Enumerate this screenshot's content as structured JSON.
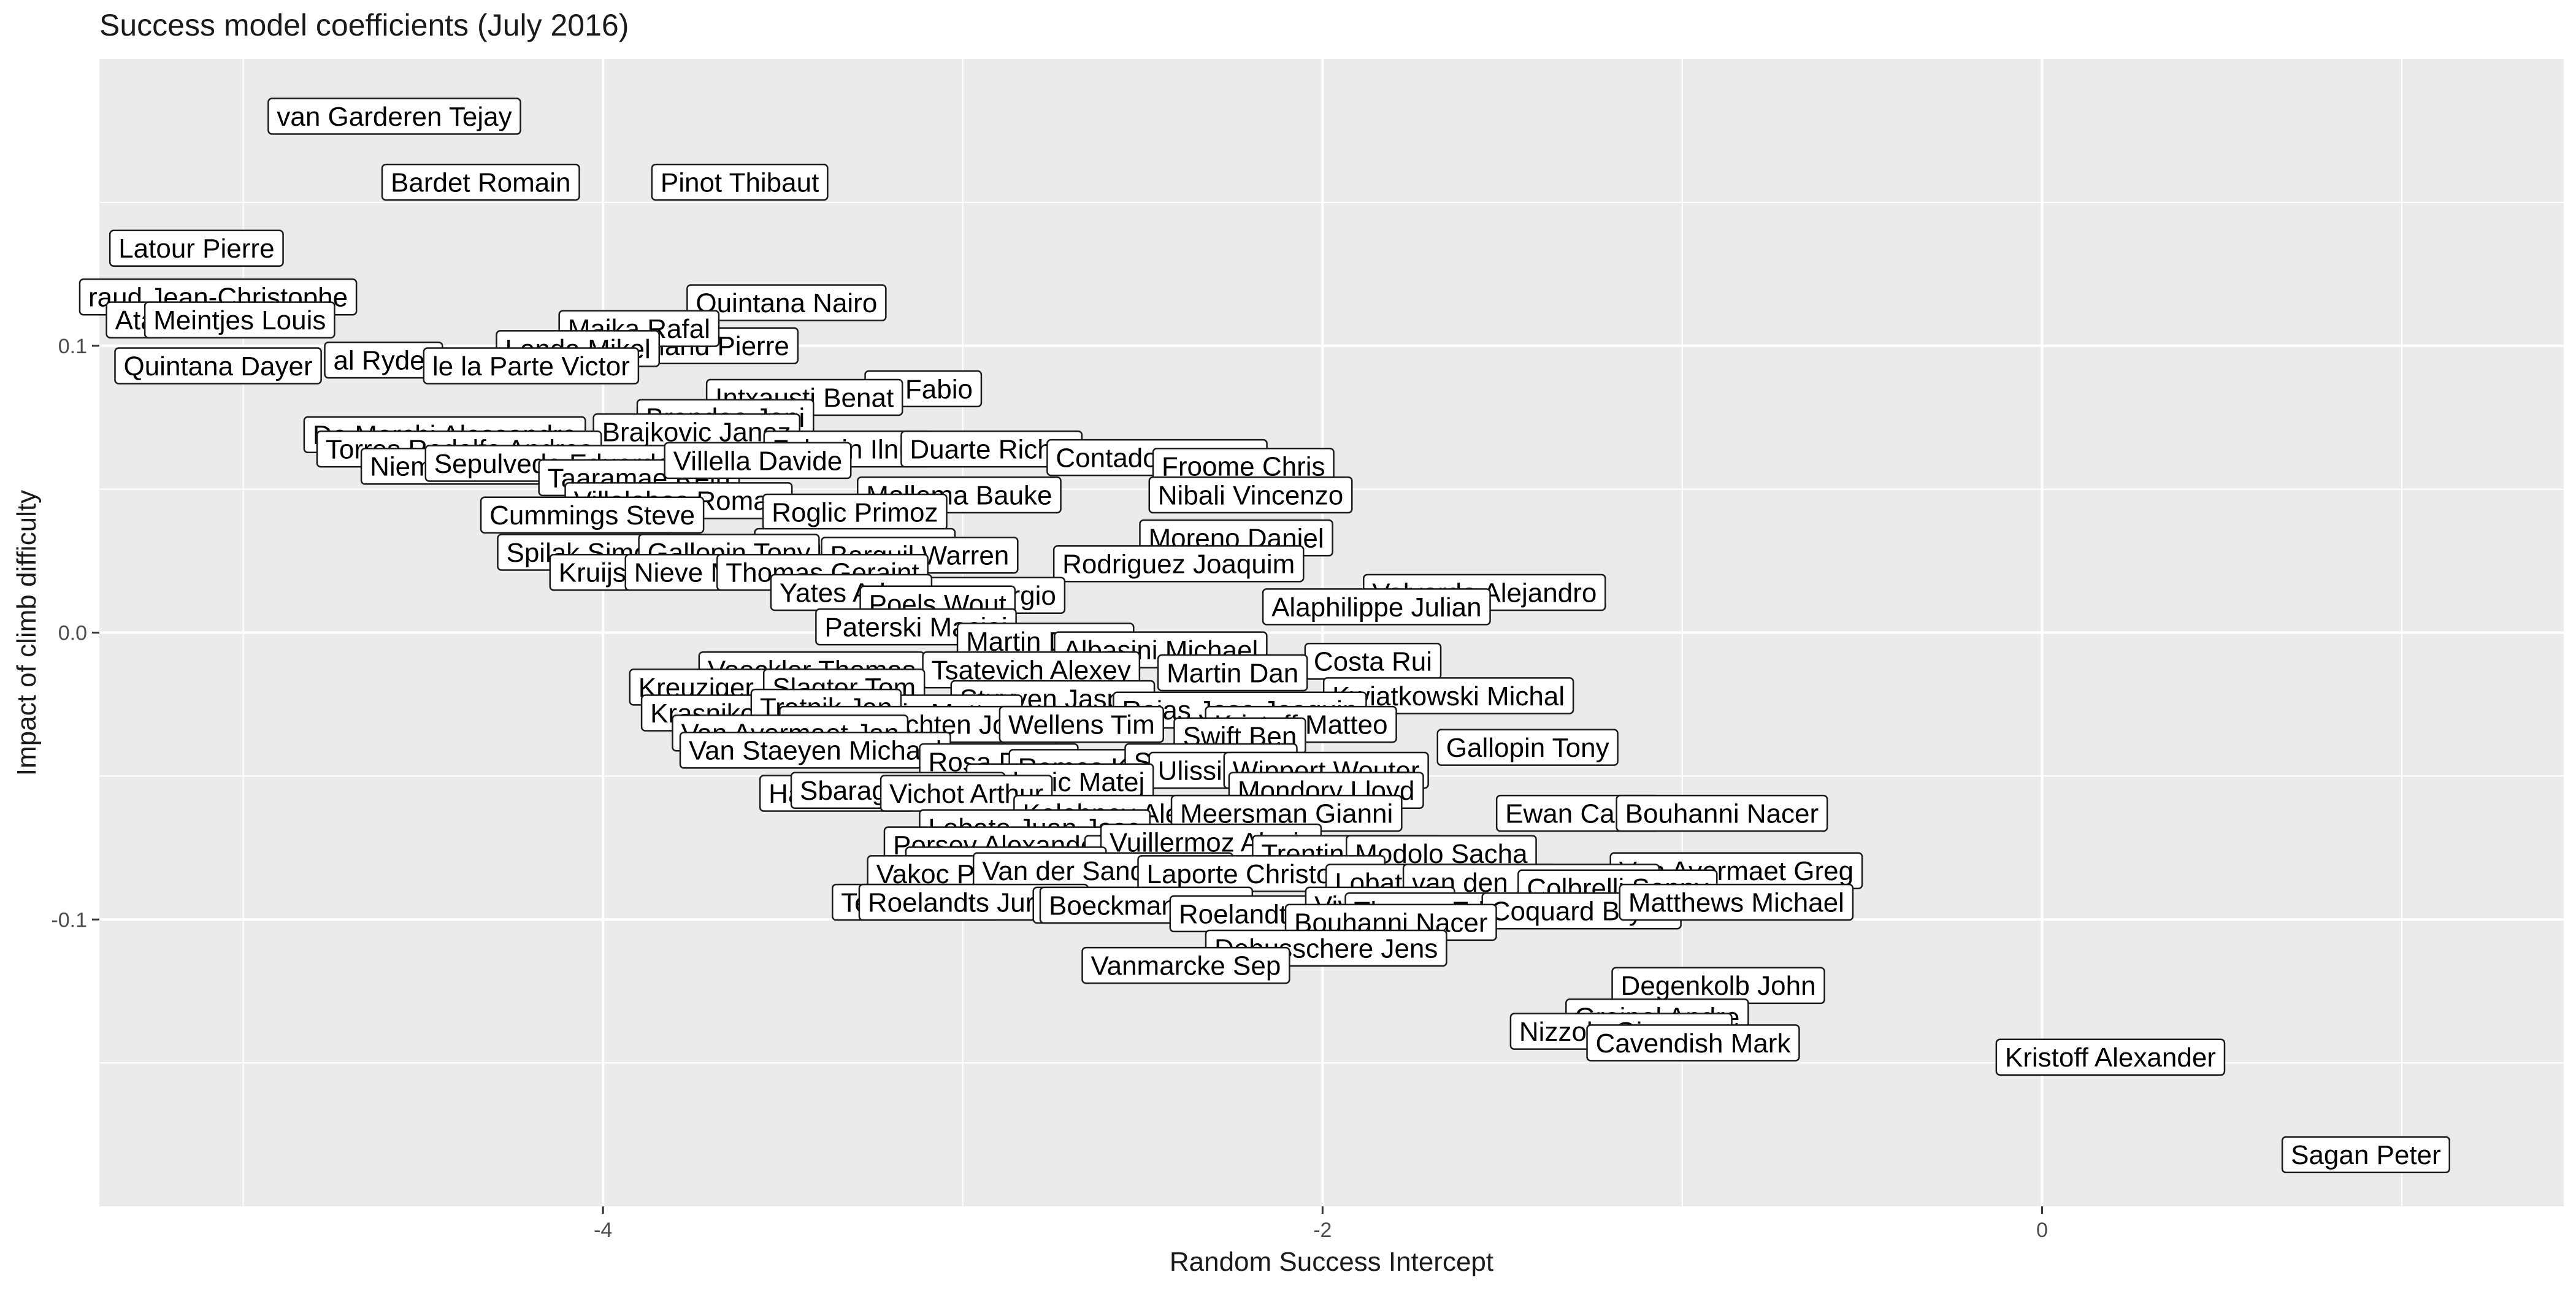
{
  "chart_data": {
    "type": "scatter",
    "title": "Success model coefficients (July 2016)",
    "xlabel": "Random Success Intercept",
    "ylabel": "Impact of climb difficulty",
    "xlim": [
      -5.4,
      1.45
    ],
    "ylim": [
      -0.2,
      0.2
    ],
    "x_ticks": [
      {
        "value": -4,
        "label": "-4"
      },
      {
        "value": -2,
        "label": "-2"
      },
      {
        "value": 0,
        "label": "0"
      }
    ],
    "y_ticks": [
      {
        "value": 0.1,
        "label": "0.1"
      },
      {
        "value": 0.0,
        "label": "0.0"
      },
      {
        "value": -0.1,
        "label": "-0.1"
      }
    ],
    "grid": true,
    "panel_background": "#ebebeb",
    "point_labels": [
      {
        "label": "van Garderen Tejay",
        "x": -4.58,
        "y": 0.18
      },
      {
        "label": "Bardet Romain",
        "x": -4.34,
        "y": 0.157
      },
      {
        "label": "Pinot Thibaut",
        "x": -3.62,
        "y": 0.157
      },
      {
        "label": "Latour Pierre",
        "x": -5.13,
        "y": 0.134
      },
      {
        "label": "Quintana Nairo",
        "x": -3.49,
        "y": 0.115
      },
      {
        "label": "Rolland Pierre",
        "x": -3.72,
        "y": 0.1
      },
      {
        "label": "raud Jean-Christophe",
        "x": -5.07,
        "y": 0.117
      },
      {
        "label": "Ata",
        "x": -5.3,
        "y": 0.109
      },
      {
        "label": "Meintjes Louis",
        "x": -5.01,
        "y": 0.109
      },
      {
        "label": "Majka Rafal",
        "x": -3.9,
        "y": 0.106
      },
      {
        "label": "Landa Mikel",
        "x": -4.07,
        "y": 0.099
      },
      {
        "label": "Quintana Dayer",
        "x": -5.07,
        "y": 0.093
      },
      {
        "label": "al Ryder",
        "x": -4.61,
        "y": 0.095
      },
      {
        "label": "le la Parte Victor",
        "x": -4.2,
        "y": 0.093
      },
      {
        "label": "ru Fabio",
        "x": -3.11,
        "y": 0.085
      },
      {
        "label": "Intxausti Benat",
        "x": -3.44,
        "y": 0.082
      },
      {
        "label": "Brandao Joni",
        "x": -3.66,
        "y": 0.075
      },
      {
        "label": "Brajkovic Janez",
        "x": -3.74,
        "y": 0.07
      },
      {
        "label": "De Marchi Alessandro",
        "x": -4.44,
        "y": 0.069
      },
      {
        "label": "Torres Rodolfo Andres",
        "x": -4.4,
        "y": 0.064
      },
      {
        "label": "Zakarin Ilnur",
        "x": -3.32,
        "y": 0.064
      },
      {
        "label": "Duarte Richie",
        "x": -2.92,
        "y": 0.064
      },
      {
        "label": "Contador Alberto",
        "x": -2.46,
        "y": 0.061
      },
      {
        "label": "Froome Chris",
        "x": -2.22,
        "y": 0.058
      },
      {
        "label": "Niemiec Przemyslaw",
        "x": -4.3,
        "y": 0.058
      },
      {
        "label": "Sepulveda Eduardo",
        "x": -4.14,
        "y": 0.059
      },
      {
        "label": "Taaramae Rein",
        "x": -3.9,
        "y": 0.054
      },
      {
        "label": "Villella Davide",
        "x": -3.57,
        "y": 0.06
      },
      {
        "label": "Mollema Bauke",
        "x": -3.01,
        "y": 0.048
      },
      {
        "label": "Nibali Vincenzo",
        "x": -2.2,
        "y": 0.048
      },
      {
        "label": "Villalobos Roman",
        "x": -3.79,
        "y": 0.046
      },
      {
        "label": "Roglic Primoz",
        "x": -3.3,
        "y": 0.042
      },
      {
        "label": "Cummings Steve",
        "x": -4.03,
        "y": 0.041
      },
      {
        "label": "Moreno Daniel",
        "x": -2.24,
        "y": 0.033
      },
      {
        "label": "Spilak Simon",
        "x": -4.05,
        "y": 0.028
      },
      {
        "label": "Uran Rigoberto",
        "x": -3.3,
        "y": 0.03
      },
      {
        "label": "Gallopin Tony",
        "x": -3.65,
        "y": 0.028
      },
      {
        "label": "Barguil Warren",
        "x": -3.12,
        "y": 0.027
      },
      {
        "label": "Rodriguez Joaquim",
        "x": -2.4,
        "y": 0.024
      },
      {
        "label": "Kruijswijk Steven",
        "x": -3.84,
        "y": 0.021
      },
      {
        "label": "Nieve Mikel",
        "x": -3.72,
        "y": 0.021
      },
      {
        "label": "Thomas Geraint",
        "x": -3.39,
        "y": 0.021
      },
      {
        "label": "Henao Sergio",
        "x": -2.97,
        "y": 0.013
      },
      {
        "label": "Yates Adam",
        "x": -3.31,
        "y": 0.014
      },
      {
        "label": "Poels Wout",
        "x": -3.07,
        "y": 0.01
      },
      {
        "label": "Valverde Alejandro",
        "x": -1.55,
        "y": 0.014
      },
      {
        "label": "Alaphilippe Julian",
        "x": -1.85,
        "y": 0.009
      },
      {
        "label": "Paterski Maciej",
        "x": -3.13,
        "y": 0.002
      },
      {
        "label": "Martin Daniel",
        "x": -2.77,
        "y": -0.003
      },
      {
        "label": "Albasini Michael",
        "x": -2.45,
        "y": -0.006
      },
      {
        "label": "Costa Rui",
        "x": -1.86,
        "y": -0.01
      },
      {
        "label": "Voeckler Thomas",
        "x": -3.42,
        "y": -0.013
      },
      {
        "label": "Tsatevich Alexey",
        "x": -2.81,
        "y": -0.013
      },
      {
        "label": "Martin Dan",
        "x": -2.25,
        "y": -0.014
      },
      {
        "label": "Kwiatkowski Michal",
        "x": -1.65,
        "y": -0.022
      },
      {
        "label": "Kreuziger Roman",
        "x": -3.61,
        "y": -0.019
      },
      {
        "label": "Slagter Tom",
        "x": -3.33,
        "y": -0.019
      },
      {
        "label": "Stuyven Jasper",
        "x": -2.75,
        "y": -0.023
      },
      {
        "label": "Rojas Jose Joaquin",
        "x": -2.23,
        "y": -0.027
      },
      {
        "label": "Kristoff Matteo",
        "x": -2.06,
        "y": -0.032
      },
      {
        "label": "Krasnikov Pavel",
        "x": -3.6,
        "y": -0.028
      },
      {
        "label": "Trentin Matteo",
        "x": -3.1,
        "y": -0.028
      },
      {
        "label": "Tratnik Jan",
        "x": -3.38,
        "y": -0.026
      },
      {
        "label": "van Genechten Jonas",
        "x": -3.12,
        "y": -0.032
      },
      {
        "label": "Wellens Tim",
        "x": -2.67,
        "y": -0.032
      },
      {
        "label": "Van Avermaet Jan",
        "x": -3.48,
        "y": -0.035
      },
      {
        "label": "Swift Ben",
        "x": -2.23,
        "y": -0.036
      },
      {
        "label": "Van Staeyen Michael",
        "x": -3.41,
        "y": -0.041
      },
      {
        "label": "Gallopin Tony",
        "x": -1.43,
        "y": -0.04
      },
      {
        "label": "Rosa Diego",
        "x": -2.9,
        "y": -0.045
      },
      {
        "label": "Ramos Karel",
        "x": -2.63,
        "y": -0.047
      },
      {
        "label": "Stannard Ian",
        "x": -2.31,
        "y": -0.045
      },
      {
        "label": "Ulissi Diego",
        "x": -2.26,
        "y": -0.048
      },
      {
        "label": "Wippert Wouter",
        "x": -1.99,
        "y": -0.048
      },
      {
        "label": "Mohoric Matej",
        "x": -2.73,
        "y": -0.052
      },
      {
        "label": "Mondory Lloyd",
        "x": -1.99,
        "y": -0.055
      },
      {
        "label": "Haga Chad",
        "x": -3.35,
        "y": -0.056
      },
      {
        "label": "Sbaragli Kristian",
        "x": -3.18,
        "y": -0.055
      },
      {
        "label": "Vichot Arthur",
        "x": -2.99,
        "y": -0.056
      },
      {
        "label": "Kolobnev Alexander",
        "x": -2.5,
        "y": -0.063
      },
      {
        "label": "Meersman Gianni",
        "x": -2.1,
        "y": -0.063
      },
      {
        "label": "Ewan Caleb",
        "x": -1.29,
        "y": -0.063
      },
      {
        "label": "Bouhanni Nacer",
        "x": -0.89,
        "y": -0.063
      },
      {
        "label": "Lobato Juan Jose",
        "x": -2.8,
        "y": -0.068
      },
      {
        "label": "Porsev Alexander",
        "x": -2.9,
        "y": -0.074
      },
      {
        "label": "van Poppel Danny",
        "x": -2.33,
        "y": -0.077
      },
      {
        "label": "Vuillermoz Alexis",
        "x": -2.31,
        "y": -0.073
      },
      {
        "label": "Trentin Matteo",
        "x": -1.93,
        "y": -0.077
      },
      {
        "label": "Modolo Sacha",
        "x": -1.67,
        "y": -0.077
      },
      {
        "label": "Gilbert Philippe",
        "x": -2.88,
        "y": -0.081
      },
      {
        "label": "Vakoc Petr",
        "x": -3.06,
        "y": -0.084
      },
      {
        "label": "Van der Sande Tosh",
        "x": -2.61,
        "y": -0.083
      },
      {
        "label": "Laporte Christophe",
        "x": -2.17,
        "y": -0.084
      },
      {
        "label": "Van Avermaet Greg",
        "x": -0.85,
        "y": -0.083
      },
      {
        "label": "Lobato Juan Jose",
        "x": -1.67,
        "y": -0.087
      },
      {
        "label": "van den Haar Dylan",
        "x": -1.42,
        "y": -0.087
      },
      {
        "label": "Colbrelli Sonny",
        "x": -1.18,
        "y": -0.089
      },
      {
        "label": "Terpstra Niki",
        "x": -3.13,
        "y": -0.094
      },
      {
        "label": "Roelandts Jurgen",
        "x": -2.97,
        "y": -0.094
      },
      {
        "label": "Renshaw Mark",
        "x": -2.53,
        "y": -0.095
      },
      {
        "label": "Boeckmans Kris",
        "x": -2.49,
        "y": -0.095
      },
      {
        "label": "Roelandts Jan",
        "x": -2.16,
        "y": -0.098
      },
      {
        "label": "Viviani Elia",
        "x": -1.84,
        "y": -0.095
      },
      {
        "label": "Theuns Edward",
        "x": -1.65,
        "y": -0.097
      },
      {
        "label": "Coquard Bryan",
        "x": -1.28,
        "y": -0.097
      },
      {
        "label": "Matthews Michael",
        "x": -0.85,
        "y": -0.094
      },
      {
        "label": "Bouhanni Nacer",
        "x": -1.81,
        "y": -0.101
      },
      {
        "label": "Debusschere Jens",
        "x": -1.99,
        "y": -0.11
      },
      {
        "label": "Vanmarcke Sep",
        "x": -2.38,
        "y": -0.116
      },
      {
        "label": "Degenkolb John",
        "x": -0.9,
        "y": -0.123
      },
      {
        "label": "Greipel Andre",
        "x": -1.07,
        "y": -0.134
      },
      {
        "label": "Nizzolo Giacomo",
        "x": -1.17,
        "y": -0.139
      },
      {
        "label": "Cavendish Mark",
        "x": -0.97,
        "y": -0.143
      },
      {
        "label": "Kristoff Alexander",
        "x": 0.19,
        "y": -0.148
      },
      {
        "label": "Sagan Peter",
        "x": 0.9,
        "y": -0.182
      }
    ]
  }
}
